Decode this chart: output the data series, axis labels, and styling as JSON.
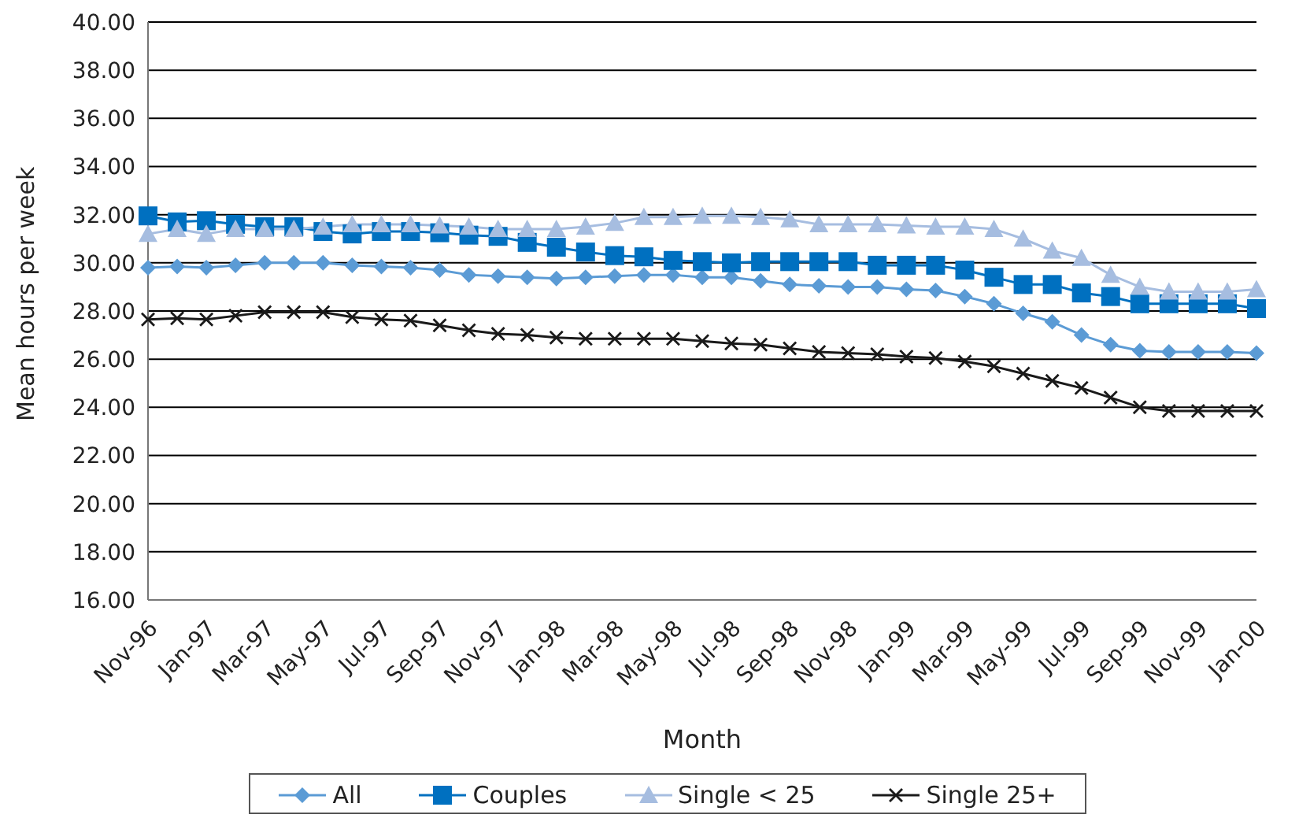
{
  "chart_data": {
    "type": "line",
    "xlabel": "Month",
    "ylabel": "Mean hours per week",
    "categories": [
      "Nov-96",
      null,
      "Jan-97",
      null,
      "Mar-97",
      null,
      "May-97",
      null,
      "Jul-97",
      null,
      "Sep-97",
      null,
      "Nov-97",
      null,
      "Jan-98",
      null,
      "Mar-98",
      null,
      "May-98",
      null,
      "Jul-98",
      null,
      "Sep-98",
      null,
      "Nov-98",
      null,
      "Jan-99",
      null,
      "Mar-99",
      null,
      "May-99",
      null,
      "Jul-99",
      null,
      "Sep-99",
      null,
      "Nov-99",
      null,
      "Jan-00"
    ],
    "series": [
      {
        "name": "All",
        "color": "#5b9bd5",
        "marker": "diamond",
        "values": [
          29.8,
          29.85,
          29.8,
          29.9,
          30.0,
          30.0,
          30.0,
          29.9,
          29.85,
          29.8,
          29.7,
          29.5,
          29.45,
          29.4,
          29.35,
          29.4,
          29.45,
          29.5,
          29.5,
          29.4,
          29.4,
          29.25,
          29.1,
          29.05,
          29.0,
          29.0,
          28.9,
          28.85,
          28.6,
          28.3,
          27.9,
          27.55,
          27.0,
          26.6,
          26.35,
          26.3,
          26.3,
          26.3,
          26.25
        ]
      },
      {
        "name": "Couples",
        "color": "#0070c0",
        "marker": "square",
        "values": [
          31.95,
          31.7,
          31.75,
          31.6,
          31.5,
          31.5,
          31.3,
          31.2,
          31.3,
          31.3,
          31.25,
          31.15,
          31.1,
          30.85,
          30.65,
          30.45,
          30.3,
          30.25,
          30.1,
          30.05,
          30.0,
          30.05,
          30.05,
          30.05,
          30.05,
          29.9,
          29.9,
          29.9,
          29.7,
          29.4,
          29.1,
          29.1,
          28.75,
          28.6,
          28.3,
          28.3,
          28.3,
          28.3,
          28.1
        ]
      },
      {
        "name": "Single < 25",
        "color": "#a6bde0",
        "marker": "triangle",
        "values": [
          31.2,
          31.4,
          31.2,
          31.4,
          31.4,
          31.4,
          31.5,
          31.6,
          31.6,
          31.6,
          31.55,
          31.5,
          31.4,
          31.4,
          31.4,
          31.5,
          31.65,
          31.9,
          31.9,
          31.95,
          31.95,
          31.9,
          31.8,
          31.6,
          31.6,
          31.6,
          31.55,
          31.5,
          31.5,
          31.4,
          31.0,
          30.5,
          30.2,
          29.5,
          29.0,
          28.8,
          28.8,
          28.8,
          28.9
        ]
      },
      {
        "name": "Single 25+",
        "color": "#1a1a1a",
        "marker": "cross",
        "values": [
          27.65,
          27.7,
          27.65,
          27.8,
          27.95,
          27.95,
          27.95,
          27.75,
          27.65,
          27.6,
          27.4,
          27.2,
          27.05,
          27.0,
          26.9,
          26.85,
          26.85,
          26.85,
          26.85,
          26.75,
          26.65,
          26.6,
          26.45,
          26.3,
          26.25,
          26.2,
          26.1,
          26.05,
          25.9,
          25.7,
          25.4,
          25.1,
          24.8,
          24.4,
          24.0,
          23.85,
          23.85,
          23.85,
          23.85
        ]
      }
    ],
    "ylim": [
      16,
      40
    ],
    "yticks": [
      {
        "value": 16,
        "label": "16.00"
      },
      {
        "value": 18,
        "label": "18.00"
      },
      {
        "value": 20,
        "label": "20.00"
      },
      {
        "value": 22,
        "label": "22.00"
      },
      {
        "value": 24,
        "label": "24.00"
      },
      {
        "value": 26,
        "label": "26.00"
      },
      {
        "value": 28,
        "label": "28.00"
      },
      {
        "value": 30,
        "label": "30.00"
      },
      {
        "value": 32,
        "label": "32.00"
      },
      {
        "value": 34,
        "label": "34.00"
      },
      {
        "value": 36,
        "label": "36.00"
      },
      {
        "value": 38,
        "label": "38.00"
      },
      {
        "value": 40,
        "label": "40.00"
      }
    ],
    "grid": "y",
    "legend": "bottom"
  }
}
